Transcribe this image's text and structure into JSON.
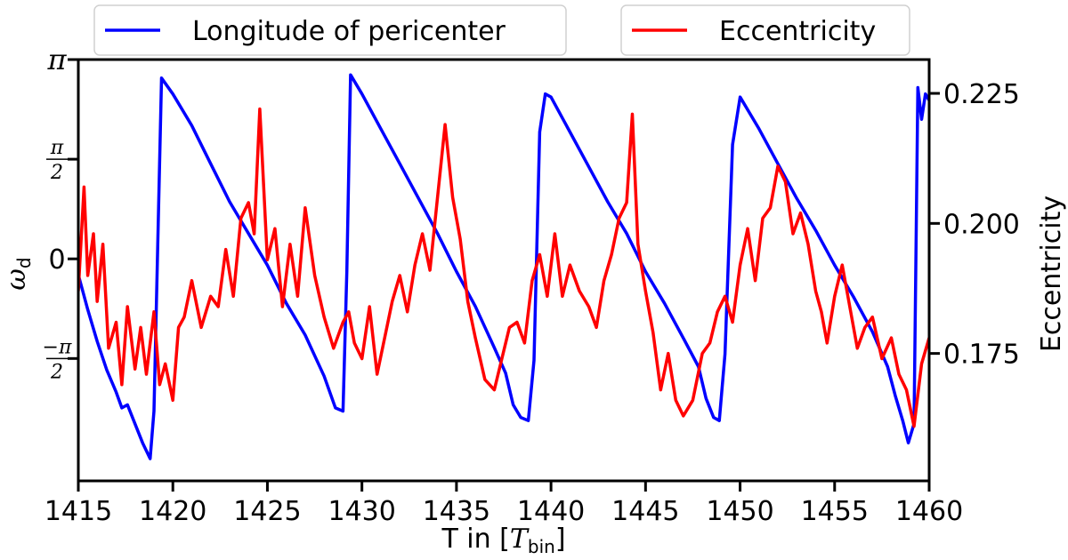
{
  "chart_data": {
    "type": "line",
    "xlabel": "T in [T_bin]",
    "xlabel_main": "T in [",
    "xlabel_sym": "T",
    "xlabel_sub": "bin",
    "xlabel_end": "]",
    "ylabel_left_sym": "ω",
    "ylabel_left_sub": "d",
    "ylabel_right": "Eccentricity",
    "xlim": [
      1415,
      1460
    ],
    "xticks": [
      "1415",
      "1420",
      "1425",
      "1430",
      "1435",
      "1440",
      "1445",
      "1450",
      "1455",
      "1460"
    ],
    "y_left_lim": [
      -3.5,
      3.1416
    ],
    "y_left_ticks": [
      {
        "value": 3.1416,
        "kind": "pi",
        "label": "π"
      },
      {
        "value": 1.5708,
        "kind": "frac",
        "num": "π",
        "den": "2"
      },
      {
        "value": 0,
        "kind": "plain",
        "label": "0"
      },
      {
        "value": -1.5708,
        "kind": "frac",
        "num": "−π",
        "den": "2"
      }
    ],
    "y_right_lim": [
      0.1505,
      0.2315
    ],
    "y_right_ticks": [
      "0.175",
      "0.200",
      "0.225"
    ],
    "y_right_tick_values": [
      0.175,
      0.2,
      0.225
    ],
    "legend_placement": "above-plot",
    "series": [
      {
        "name": "Longitude of pericenter",
        "color": "#0000ff",
        "axis": "left",
        "x": [
          1415.0,
          1415.5,
          1416.0,
          1416.5,
          1417.0,
          1417.3,
          1417.6,
          1418.0,
          1418.4,
          1418.8,
          1419.0,
          1419.4,
          1420.0,
          1421.0,
          1422.0,
          1423.0,
          1424.0,
          1425.0,
          1426.0,
          1427.0,
          1428.0,
          1428.6,
          1429.0,
          1429.2,
          1429.4,
          1430.0,
          1431.0,
          1432.0,
          1433.0,
          1434.0,
          1435.0,
          1436.0,
          1437.0,
          1437.6,
          1438.0,
          1438.4,
          1438.8,
          1439.1,
          1439.4,
          1439.7,
          1440.0,
          1441.0,
          1442.0,
          1443.0,
          1444.0,
          1445.0,
          1446.0,
          1447.0,
          1447.8,
          1448.2,
          1448.6,
          1448.9,
          1449.2,
          1449.6,
          1450.0,
          1451.0,
          1452.0,
          1453.0,
          1454.0,
          1455.0,
          1456.0,
          1457.0,
          1457.8,
          1458.2,
          1458.6,
          1458.9,
          1459.2,
          1459.4,
          1459.6,
          1459.8,
          1460.0
        ],
        "y": [
          -0.25,
          -0.8,
          -1.3,
          -1.75,
          -2.1,
          -2.35,
          -2.3,
          -2.6,
          -2.9,
          -3.15,
          -2.4,
          2.85,
          2.6,
          2.1,
          1.5,
          0.9,
          0.4,
          -0.1,
          -0.7,
          -1.2,
          -1.85,
          -2.35,
          -2.4,
          -0.2,
          2.9,
          2.6,
          2.05,
          1.5,
          0.95,
          0.4,
          -0.2,
          -0.75,
          -1.4,
          -1.8,
          -2.3,
          -2.5,
          -2.55,
          -1.6,
          2.0,
          2.6,
          2.55,
          2.0,
          1.45,
          0.9,
          0.4,
          -0.2,
          -0.7,
          -1.25,
          -1.7,
          -2.2,
          -2.5,
          -2.55,
          -1.5,
          1.8,
          2.55,
          2.05,
          1.5,
          0.95,
          0.45,
          -0.1,
          -0.6,
          -1.15,
          -1.7,
          -2.15,
          -2.55,
          -2.9,
          -2.6,
          2.7,
          2.2,
          2.6,
          2.5
        ]
      },
      {
        "name": "Eccentricity",
        "color": "#ff0000",
        "axis": "right",
        "x": [
          1415.0,
          1415.3,
          1415.5,
          1415.8,
          1416.0,
          1416.3,
          1416.6,
          1417.0,
          1417.3,
          1417.6,
          1418.0,
          1418.3,
          1418.6,
          1419.0,
          1419.3,
          1419.6,
          1420.0,
          1420.3,
          1420.6,
          1421.0,
          1421.5,
          1422.0,
          1422.4,
          1422.8,
          1423.2,
          1423.6,
          1424.0,
          1424.3,
          1424.6,
          1425.0,
          1425.4,
          1425.8,
          1426.2,
          1426.6,
          1427.0,
          1427.5,
          1428.0,
          1428.5,
          1429.0,
          1429.3,
          1429.6,
          1430.0,
          1430.4,
          1430.8,
          1431.2,
          1431.6,
          1432.0,
          1432.4,
          1432.8,
          1433.2,
          1433.6,
          1434.0,
          1434.4,
          1434.8,
          1435.2,
          1435.6,
          1436.0,
          1436.5,
          1437.0,
          1437.4,
          1437.8,
          1438.2,
          1438.6,
          1439.0,
          1439.4,
          1439.8,
          1440.2,
          1440.6,
          1441.0,
          1441.5,
          1442.0,
          1442.4,
          1442.8,
          1443.2,
          1443.6,
          1444.0,
          1444.3,
          1444.6,
          1445.0,
          1445.4,
          1445.8,
          1446.2,
          1446.6,
          1447.0,
          1447.5,
          1448.0,
          1448.4,
          1448.8,
          1449.2,
          1449.6,
          1450.0,
          1450.4,
          1450.8,
          1451.2,
          1451.6,
          1452.0,
          1452.4,
          1452.8,
          1453.2,
          1453.6,
          1454.0,
          1454.3,
          1454.6,
          1455.0,
          1455.4,
          1455.8,
          1456.2,
          1456.6,
          1457.0,
          1457.5,
          1458.0,
          1458.4,
          1458.8,
          1459.2,
          1459.6,
          1460.0
        ],
        "y": [
          0.187,
          0.207,
          0.19,
          0.198,
          0.185,
          0.196,
          0.176,
          0.181,
          0.169,
          0.184,
          0.172,
          0.18,
          0.171,
          0.183,
          0.169,
          0.173,
          0.166,
          0.18,
          0.182,
          0.189,
          0.18,
          0.186,
          0.184,
          0.195,
          0.186,
          0.201,
          0.204,
          0.198,
          0.222,
          0.193,
          0.199,
          0.184,
          0.196,
          0.186,
          0.203,
          0.19,
          0.182,
          0.176,
          0.181,
          0.183,
          0.177,
          0.174,
          0.184,
          0.171,
          0.178,
          0.185,
          0.19,
          0.183,
          0.192,
          0.198,
          0.191,
          0.205,
          0.219,
          0.205,
          0.197,
          0.185,
          0.178,
          0.17,
          0.168,
          0.174,
          0.18,
          0.181,
          0.177,
          0.189,
          0.194,
          0.186,
          0.198,
          0.186,
          0.192,
          0.187,
          0.184,
          0.18,
          0.189,
          0.194,
          0.201,
          0.204,
          0.221,
          0.196,
          0.187,
          0.179,
          0.168,
          0.175,
          0.166,
          0.163,
          0.166,
          0.175,
          0.177,
          0.183,
          0.186,
          0.181,
          0.192,
          0.199,
          0.189,
          0.201,
          0.203,
          0.211,
          0.208,
          0.198,
          0.202,
          0.196,
          0.187,
          0.183,
          0.177,
          0.186,
          0.192,
          0.184,
          0.176,
          0.18,
          0.182,
          0.174,
          0.178,
          0.171,
          0.168,
          0.161,
          0.173,
          0.178
        ]
      }
    ]
  }
}
